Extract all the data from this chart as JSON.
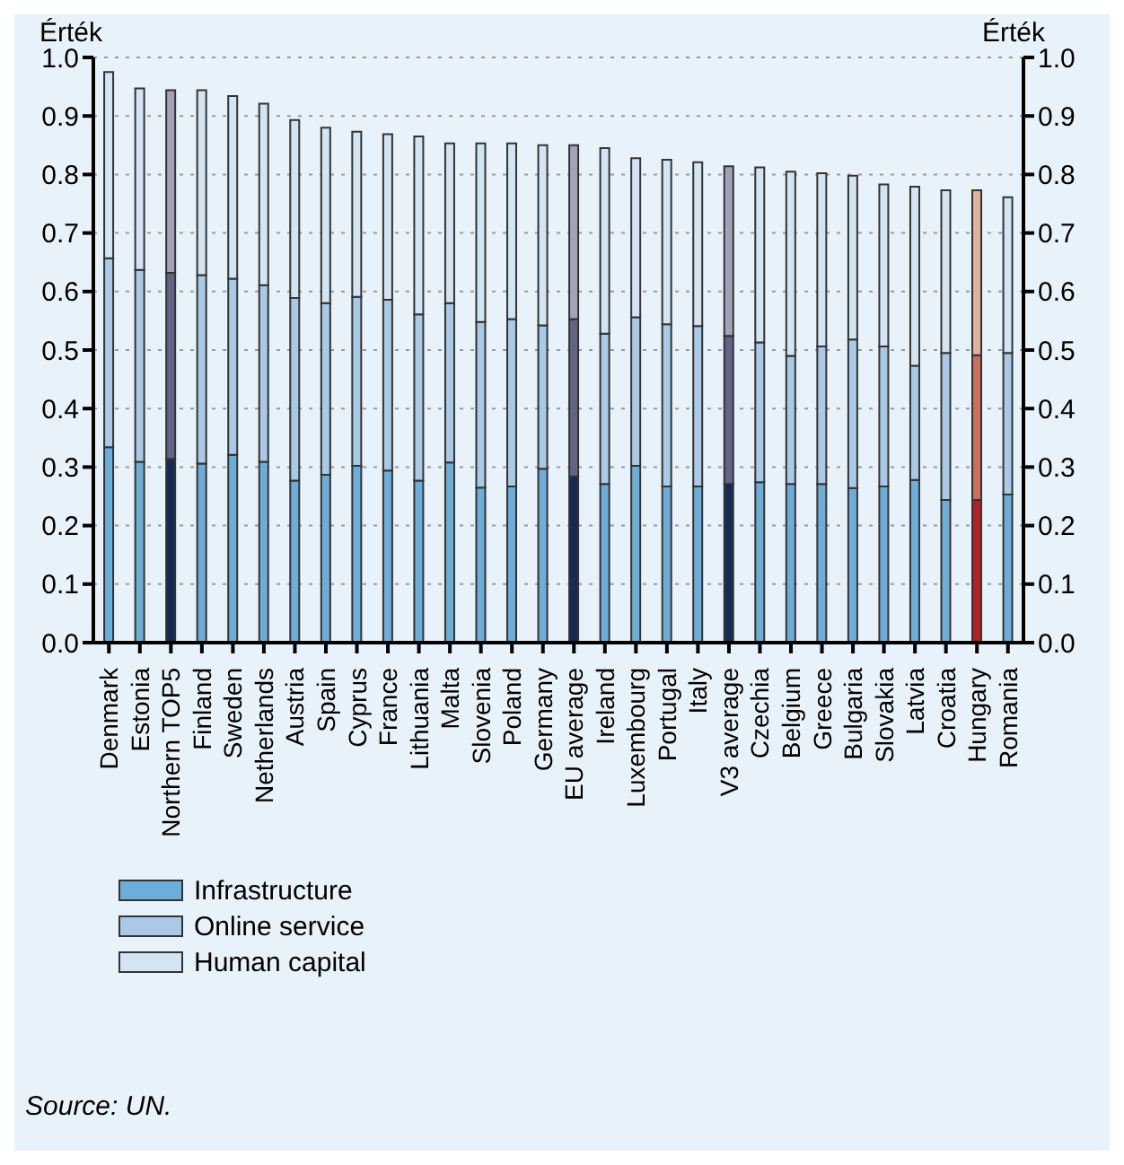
{
  "chart_data": {
    "type": "bar",
    "stacked": true,
    "ylabel": "Érték",
    "y2label": "Érték",
    "categories": [
      "Denmark",
      "Estonia",
      "Northern TOP5",
      "Finland",
      "Sweden",
      "Netherlands",
      "Austria",
      "Spain",
      "Cyprus",
      "France",
      "Lithuania",
      "Malta",
      "Slovenia",
      "Poland",
      "Germany",
      "EU average",
      "Ireland",
      "Luxembourg",
      "Portugal",
      "Italy",
      "V3 average",
      "Czechia",
      "Belgium",
      "Greece",
      "Bulgaria",
      "Slovakia",
      "Latvia",
      "Croatia",
      "Hungary",
      "Romania"
    ],
    "series": [
      {
        "name": "Infrastructure",
        "color": "#6fadd9",
        "colors": [
          "#6fadd9",
          "#6fadd9",
          "#172a55",
          "#6fadd9",
          "#6fadd9",
          "#6fadd9",
          "#6fadd9",
          "#6fadd9",
          "#6fadd9",
          "#6fadd9",
          "#6fadd9",
          "#6fadd9",
          "#6fadd9",
          "#6fadd9",
          "#6fadd9",
          "#172a55",
          "#6fadd9",
          "#6fadd9",
          "#6fadd9",
          "#6fadd9",
          "#172a55",
          "#6fadd9",
          "#6fadd9",
          "#6fadd9",
          "#6fadd9",
          "#6fadd9",
          "#6fadd9",
          "#6fadd9",
          "#b02226",
          "#6fadd9"
        ],
        "values": [
          0.334,
          0.309,
          0.314,
          0.306,
          0.321,
          0.309,
          0.277,
          0.287,
          0.302,
          0.294,
          0.277,
          0.308,
          0.265,
          0.267,
          0.297,
          0.284,
          0.271,
          0.302,
          0.267,
          0.267,
          0.271,
          0.274,
          0.271,
          0.271,
          0.264,
          0.267,
          0.278,
          0.244,
          0.244,
          0.253
        ]
      },
      {
        "name": "Online service",
        "color": "#a9c9e6",
        "colors": [
          "#a9c9e6",
          "#a9c9e6",
          "#626486",
          "#a9c9e6",
          "#a9c9e6",
          "#a9c9e6",
          "#a9c9e6",
          "#a9c9e6",
          "#a9c9e6",
          "#a9c9e6",
          "#a9c9e6",
          "#a9c9e6",
          "#a9c9e6",
          "#a9c9e6",
          "#a9c9e6",
          "#626486",
          "#a9c9e6",
          "#a9c9e6",
          "#a9c9e6",
          "#a9c9e6",
          "#626486",
          "#a9c9e6",
          "#a9c9e6",
          "#a9c9e6",
          "#a9c9e6",
          "#a9c9e6",
          "#a9c9e6",
          "#a9c9e6",
          "#c8705a",
          "#a9c9e6"
        ],
        "values": [
          0.323,
          0.328,
          0.318,
          0.322,
          0.301,
          0.302,
          0.312,
          0.293,
          0.289,
          0.292,
          0.284,
          0.272,
          0.283,
          0.286,
          0.245,
          0.269,
          0.257,
          0.254,
          0.277,
          0.274,
          0.253,
          0.239,
          0.219,
          0.235,
          0.254,
          0.239,
          0.195,
          0.251,
          0.247,
          0.242
        ]
      },
      {
        "name": "Human capital",
        "color": "#d3e4f3",
        "colors": [
          "#d3e4f3",
          "#d3e4f3",
          "#a3a3b8",
          "#d3e4f3",
          "#d3e4f3",
          "#d3e4f3",
          "#d3e4f3",
          "#d3e4f3",
          "#d3e4f3",
          "#d3e4f3",
          "#d3e4f3",
          "#d3e4f3",
          "#d3e4f3",
          "#d3e4f3",
          "#d3e4f3",
          "#a3a3b8",
          "#d3e4f3",
          "#d3e4f3",
          "#d3e4f3",
          "#d3e4f3",
          "#a3a3b8",
          "#d3e4f3",
          "#d3e4f3",
          "#d3e4f3",
          "#d3e4f3",
          "#d3e4f3",
          "#d3e4f3",
          "#d3e4f3",
          "#e2b2a0",
          "#d3e4f3"
        ],
        "values": [
          0.318,
          0.31,
          0.312,
          0.316,
          0.312,
          0.31,
          0.304,
          0.3,
          0.282,
          0.283,
          0.304,
          0.273,
          0.305,
          0.3,
          0.308,
          0.297,
          0.317,
          0.272,
          0.281,
          0.28,
          0.29,
          0.299,
          0.315,
          0.296,
          0.28,
          0.277,
          0.306,
          0.278,
          0.282,
          0.266
        ]
      }
    ],
    "ylim": [
      0,
      1
    ],
    "yticks": [
      {
        "value": 0,
        "label": "0.0"
      },
      0.1,
      0.2,
      0.3,
      0.4,
      0.5,
      0.6,
      0.7,
      0.8,
      0.9,
      {
        "value": 1,
        "label": "1.0"
      }
    ],
    "y2lim": [
      0,
      1
    ],
    "y2ticks": [
      {
        "value": 0,
        "label": "0.0"
      },
      0.1,
      0.2,
      0.3,
      0.4,
      0.5,
      0.6,
      0.7,
      0.8,
      0.9,
      {
        "value": 1,
        "label": "1.0"
      }
    ],
    "grid": "y",
    "legend": "bottom left",
    "annotations": [
      "Source: UN."
    ]
  }
}
